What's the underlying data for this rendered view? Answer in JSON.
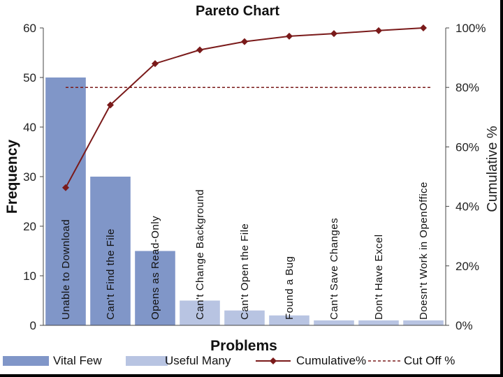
{
  "chart_data": {
    "type": "bar",
    "title": "Pareto Chart",
    "xlabel": "Problems",
    "ylabel": "Frequency",
    "y2label": "Cumulative %",
    "ylim": [
      0,
      60
    ],
    "y2lim": [
      0,
      100
    ],
    "yticks": [
      "0",
      "10",
      "20",
      "30",
      "40",
      "50",
      "60"
    ],
    "y2ticks": [
      "0%",
      "20%",
      "40%",
      "60%",
      "80%",
      "100%"
    ],
    "categories": [
      "Unable to Download",
      "Can't Find the File",
      "Opens as Read-Only",
      "Can't Change Background",
      "Can't Open the File",
      "Found a Bug",
      "Can't Save Changes",
      "Don't Have Excel",
      "Doesn't Work in OpenOffice"
    ],
    "series": [
      {
        "name": "Vital Few",
        "kind": "bar",
        "color": "#8096c8",
        "values": [
          50,
          30,
          15,
          null,
          null,
          null,
          null,
          null,
          null
        ]
      },
      {
        "name": "Useful Many",
        "kind": "bar",
        "color": "#b8c4e2",
        "values": [
          null,
          null,
          null,
          5,
          3,
          2,
          1,
          1,
          1
        ]
      },
      {
        "name": "Cumulative%",
        "kind": "line",
        "axis": "right",
        "color": "#7a1a1a",
        "values": [
          46.3,
          74.1,
          88.0,
          92.6,
          95.4,
          97.2,
          98.1,
          99.1,
          100
        ]
      },
      {
        "name": "Cut Off %",
        "kind": "line",
        "style": "dashed",
        "axis": "right",
        "color": "#7a1a1a",
        "values": [
          80,
          80,
          80,
          80,
          80,
          80,
          80,
          80,
          80
        ]
      }
    ],
    "grid": false,
    "legend_position": "bottom"
  }
}
